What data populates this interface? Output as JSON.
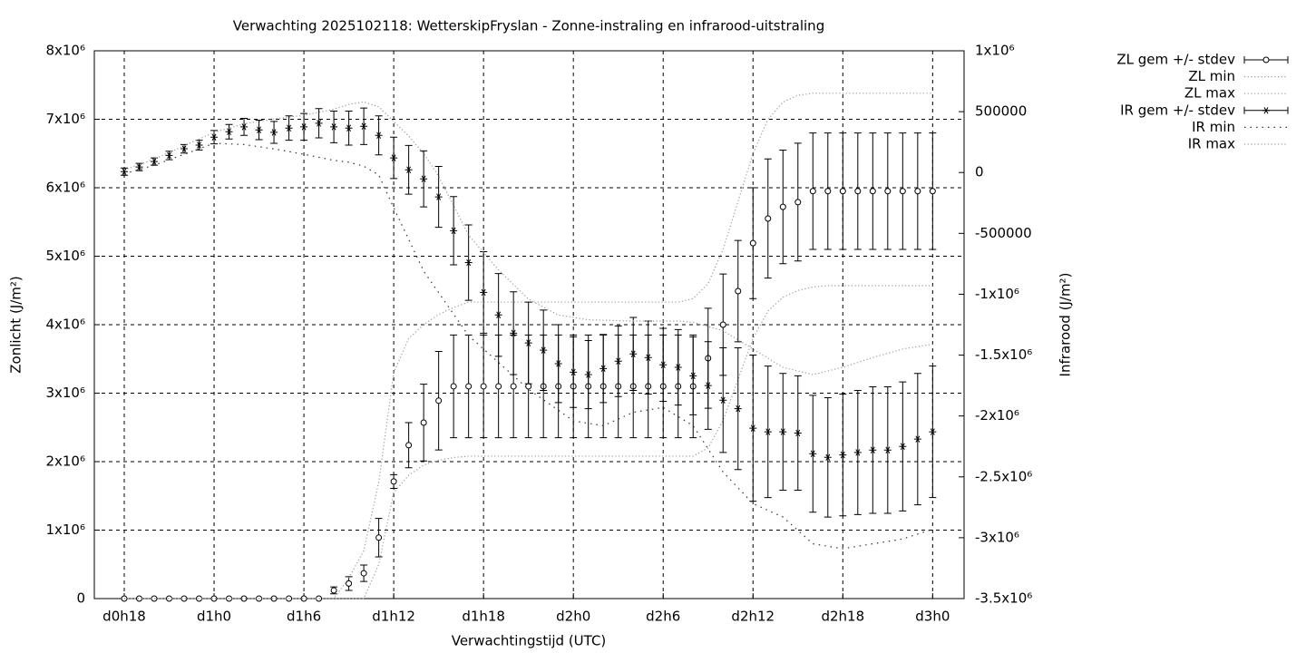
{
  "chart_data": {
    "type": "errorbar-line",
    "title": "Verwachting 2025102118: WetterskipFryslan - Zonne-instraling en infrarood-uitstraling",
    "xlabel": "Verwachtingstijd (UTC)",
    "ylabel": "Zonlicht (J/m²)",
    "y2label": "Infrarood (J/m²)",
    "xlim": [
      16,
      74.1
    ],
    "xticks": [
      {
        "value": 18,
        "label": "d0h18"
      },
      {
        "value": 24,
        "label": "d1h0"
      },
      {
        "value": 30,
        "label": "d1h6"
      },
      {
        "value": 36,
        "label": "d1h12"
      },
      {
        "value": 42,
        "label": "d1h18"
      },
      {
        "value": 48,
        "label": "d2h0"
      },
      {
        "value": 54,
        "label": "d2h6"
      },
      {
        "value": 60,
        "label": "d2h12"
      },
      {
        "value": 66,
        "label": "d2h18"
      },
      {
        "value": 72,
        "label": "d3h0"
      }
    ],
    "ylim": [
      0,
      8000000
    ],
    "yticks": [
      0,
      {
        "value": 1000000,
        "label": "1x10⁶"
      },
      {
        "value": 2000000,
        "label": "2x10⁶"
      },
      {
        "value": 3000000,
        "label": "3x10⁶"
      },
      {
        "value": 4000000,
        "label": "4x10⁶"
      },
      {
        "value": 5000000,
        "label": "5x10⁶"
      },
      {
        "value": 6000000,
        "label": "6x10⁶"
      },
      {
        "value": 7000000,
        "label": "7x10⁶"
      },
      {
        "value": 8000000,
        "label": "8x10⁶"
      }
    ],
    "y2lim": [
      -3500000,
      1000000
    ],
    "y2ticks": [
      {
        "value": 1000000,
        "label": "1x10⁶"
      },
      500000,
      0,
      -500000,
      {
        "value": -1000000,
        "label": "-1x10⁶"
      },
      {
        "value": -1500000,
        "label": "-1.5x10⁶"
      },
      {
        "value": -2000000,
        "label": "-2x10⁶"
      },
      {
        "value": -2500000,
        "label": "-2.5x10⁶"
      },
      {
        "value": -3000000,
        "label": "-3x10⁶"
      },
      {
        "value": -3500000,
        "label": "-3.5x10⁶"
      }
    ],
    "grid": true,
    "legend": "top right outside",
    "series": [
      {
        "name": "ZL gem +/- stdev",
        "style": "errorbars",
        "marker": "circle",
        "color": "#000000",
        "x": [
          18,
          19,
          20,
          21,
          22,
          23,
          24,
          25,
          26,
          27,
          28,
          29,
          30,
          31,
          32,
          33,
          34,
          35,
          36,
          37,
          38,
          39,
          40,
          41,
          42,
          43,
          44,
          45,
          46,
          47,
          48,
          49,
          50,
          51,
          52,
          53,
          54,
          55,
          56,
          57,
          58,
          59,
          60,
          61,
          62,
          63,
          64,
          65,
          66,
          67,
          68,
          69,
          70,
          71,
          72
        ],
        "values": [
          0,
          0,
          0,
          0,
          0,
          0,
          0,
          0,
          0,
          0,
          0,
          0,
          0,
          0,
          120000,
          220000,
          370000,
          890000,
          1710000,
          2240000,
          2570000,
          2890000,
          3100000,
          3100000,
          3100000,
          3100000,
          3100000,
          3100000,
          3100000,
          3100000,
          3100000,
          3100000,
          3100000,
          3100000,
          3100000,
          3100000,
          3100000,
          3100000,
          3100000,
          3510000,
          4000000,
          4490000,
          5190000,
          5550000,
          5720000,
          5790000,
          5950000,
          5950000,
          5950000,
          5950000,
          5950000,
          5950000,
          5950000,
          5950000,
          5950000
        ],
        "errors": [
          0,
          0,
          0,
          0,
          0,
          0,
          0,
          0,
          0,
          0,
          0,
          0,
          0,
          0,
          50000,
          100000,
          120000,
          280000,
          100000,
          330000,
          560000,
          720000,
          750000,
          750000,
          750000,
          750000,
          750000,
          750000,
          750000,
          750000,
          750000,
          750000,
          750000,
          750000,
          750000,
          750000,
          750000,
          750000,
          750000,
          730000,
          740000,
          740000,
          810000,
          870000,
          830000,
          860000,
          850000,
          850000,
          850000,
          850000,
          850000,
          850000,
          850000,
          850000,
          850000
        ]
      },
      {
        "name": "ZL min",
        "style": "dotted",
        "color": "#999999",
        "x": [
          18,
          34,
          35,
          36,
          37,
          38,
          39,
          40,
          41,
          56,
          57,
          58,
          59,
          60,
          61,
          62,
          63,
          64,
          65,
          72
        ],
        "values": [
          0,
          0,
          500000,
          1550000,
          1800000,
          1950000,
          2020000,
          2060000,
          2080000,
          2080000,
          2200000,
          2600000,
          3200000,
          3800000,
          4200000,
          4400000,
          4500000,
          4550000,
          4570000,
          4570000
        ]
      },
      {
        "name": "ZL max",
        "style": "dotted",
        "color": "#999999",
        "x": [
          18,
          32,
          33,
          34,
          35,
          36,
          37,
          38,
          39,
          40,
          41,
          55,
          56,
          57,
          58,
          59,
          60,
          61,
          62,
          63,
          64,
          72
        ],
        "values": [
          0,
          0,
          300000,
          700000,
          1700000,
          3300000,
          3800000,
          4000000,
          4150000,
          4250000,
          4330000,
          4330000,
          4380000,
          4600000,
          5100000,
          5800000,
          6500000,
          7000000,
          7250000,
          7350000,
          7380000,
          7380000
        ]
      },
      {
        "name": "IR gem +/- stdev",
        "style": "errorbars",
        "marker": "star",
        "color": "#000000",
        "axis": "y2",
        "x": [
          18,
          19,
          20,
          21,
          22,
          23,
          24,
          25,
          26,
          27,
          28,
          29,
          30,
          31,
          32,
          33,
          34,
          35,
          36,
          37,
          38,
          39,
          40,
          41,
          42,
          43,
          44,
          45,
          46,
          47,
          48,
          49,
          50,
          51,
          52,
          53,
          54,
          55,
          56,
          57,
          58,
          59,
          60,
          61,
          62,
          63,
          64,
          65,
          66,
          67,
          68,
          69,
          70,
          71,
          72
        ],
        "values": [
          7000,
          45000,
          90000,
          140000,
          195000,
          225000,
          290000,
          335000,
          375000,
          350000,
          330000,
          365000,
          375000,
          405000,
          375000,
          365000,
          380000,
          305000,
          120000,
          22000,
          -52000,
          -200000,
          -478000,
          -740000,
          -985000,
          -1170000,
          -1320000,
          -1400000,
          -1460000,
          -1570000,
          -1640000,
          -1660000,
          -1610000,
          -1550000,
          -1490000,
          -1520000,
          -1580000,
          -1600000,
          -1670000,
          -1750000,
          -1870000,
          -1940000,
          -2100000,
          -2130000,
          -2130000,
          -2140000,
          -2310000,
          -2340000,
          -2320000,
          -2300000,
          -2280000,
          -2280000,
          -2250000,
          -2190000,
          -2130000
        ],
        "errors": [
          30000,
          30000,
          30000,
          35000,
          35000,
          40000,
          55000,
          60000,
          70000,
          80000,
          90000,
          100000,
          110000,
          120000,
          130000,
          140000,
          150000,
          160000,
          170000,
          200000,
          230000,
          250000,
          280000,
          310000,
          335000,
          340000,
          340000,
          335000,
          330000,
          320000,
          290000,
          280000,
          280000,
          290000,
          300000,
          300000,
          300000,
          310000,
          320000,
          360000,
          430000,
          500000,
          600000,
          540000,
          480000,
          470000,
          480000,
          490000,
          500000,
          510000,
          520000,
          520000,
          530000,
          540000,
          540000
        ]
      },
      {
        "name": "IR min",
        "style": "dotted",
        "color": "#333333",
        "axis": "y2",
        "x": [
          18,
          20,
          22,
          24,
          26,
          28,
          30,
          32,
          33,
          34,
          35,
          36,
          38,
          41,
          45,
          48,
          50,
          52,
          54,
          56,
          58,
          60,
          62,
          64,
          66,
          68,
          70,
          72
        ],
        "values": [
          -10000,
          60000,
          150000,
          240000,
          230000,
          194000,
          150000,
          100000,
          85000,
          52000,
          -20000,
          -290000,
          -810000,
          -1340000,
          -1780000,
          -2040000,
          -2080000,
          -1970000,
          -1930000,
          -2080000,
          -2460000,
          -2720000,
          -2830000,
          -3050000,
          -3090000,
          -3050000,
          -3010000,
          -2930000
        ]
      },
      {
        "name": "IR max",
        "style": "dotted",
        "color": "#999999",
        "axis": "y2",
        "x": [
          18,
          20,
          22,
          24,
          26,
          28,
          30,
          32,
          33,
          34,
          35,
          36,
          37,
          38,
          39,
          41,
          43,
          45,
          47,
          49,
          52,
          55,
          56,
          58,
          60,
          62,
          64,
          66,
          68,
          70,
          72
        ],
        "values": [
          20000,
          110000,
          220000,
          330000,
          400000,
          440000,
          470000,
          520000,
          560000,
          580000,
          540000,
          420000,
          300000,
          157000,
          -30000,
          -515000,
          -800000,
          -1040000,
          -1170000,
          -1210000,
          -1220000,
          -1220000,
          -1230000,
          -1300000,
          -1450000,
          -1600000,
          -1660000,
          -1600000,
          -1520000,
          -1450000,
          -1410000
        ]
      }
    ]
  }
}
